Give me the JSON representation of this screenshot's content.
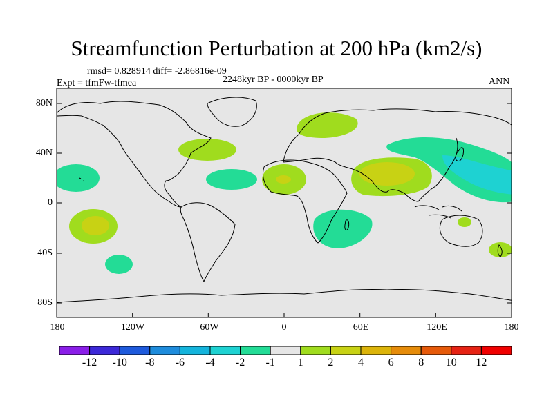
{
  "title": "Streamfunction Perturbation at 200 hPa (km2/s)",
  "stats_line": "rmsd= 0.828914 diff= -2.86816e-09",
  "expt_label": "Expt = tfmFw-tfmea",
  "period_label": "2248kyr BP - 0000kyr BP",
  "season_label": "ANN",
  "x_ticks": [
    "180",
    "120W",
    "60W",
    "0",
    "60E",
    "120E",
    "180"
  ],
  "y_ticks": [
    "80N",
    "40N",
    "0",
    "40S",
    "80S"
  ],
  "colorbar": {
    "labels": [
      "-12",
      "-10",
      "-8",
      "-6",
      "-4",
      "-2",
      "-1",
      "1",
      "2",
      "4",
      "6",
      "8",
      "10",
      "12"
    ],
    "colors": [
      "#8a1ee8",
      "#3c28d8",
      "#1e5adc",
      "#1e8cdc",
      "#14b4dc",
      "#1ed2d2",
      "#23dc96",
      "#e6e6e6",
      "#a0dc1e",
      "#c8d214",
      "#dcb40a",
      "#e68c0a",
      "#e65a0a",
      "#e62314",
      "#f00000"
    ]
  },
  "colors": {
    "ocean_background": "#e6e6e6",
    "neg_weak": "#23dc96",
    "neg_mod": "#1ed2d2",
    "pos_weak": "#a0dc1e",
    "pos_mod": "#c8d214"
  }
}
